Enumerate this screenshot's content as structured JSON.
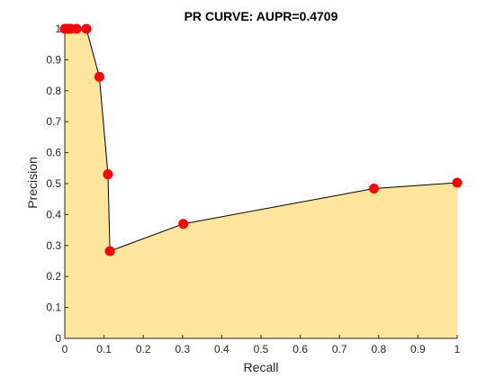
{
  "chart_data": {
    "type": "area",
    "title": "PR CURVE: AUPR=0.4709",
    "xlabel": "Recall",
    "ylabel": "Precision",
    "xlim": [
      0,
      1
    ],
    "ylim": [
      0,
      1
    ],
    "xticks": [
      0,
      0.1,
      0.2,
      0.3,
      0.4,
      0.5,
      0.6,
      0.7,
      0.8,
      0.9,
      1
    ],
    "xtick_labels": [
      "0",
      "0.1",
      "0.2",
      "0.3",
      "0.4",
      "0.5",
      "0.6",
      "0.7",
      "0.8",
      "0.9",
      "1"
    ],
    "yticks": [
      0,
      0.1,
      0.2,
      0.3,
      0.4,
      0.5,
      0.6,
      0.7,
      0.8,
      0.9,
      1
    ],
    "ytick_labels": [
      "0",
      "0.1",
      "0.2",
      "0.3",
      "0.4",
      "0.5",
      "0.6",
      "0.7",
      "0.8",
      "0.9",
      "1"
    ],
    "grid": false,
    "series": [
      {
        "x": [
          0.0,
          0.005,
          0.01,
          0.015,
          0.03,
          0.055,
          0.088,
          0.11,
          0.115,
          0.302,
          0.788,
          1.0
        ],
        "y": [
          1.0,
          1.0,
          1.0,
          1.0,
          1.0,
          1.0,
          0.845,
          0.53,
          0.282,
          0.37,
          0.484,
          0.503
        ]
      }
    ],
    "colors": {
      "fill": "#fee59e",
      "line": "#000000",
      "marker": "#ff0000",
      "axis": "#262626"
    }
  }
}
